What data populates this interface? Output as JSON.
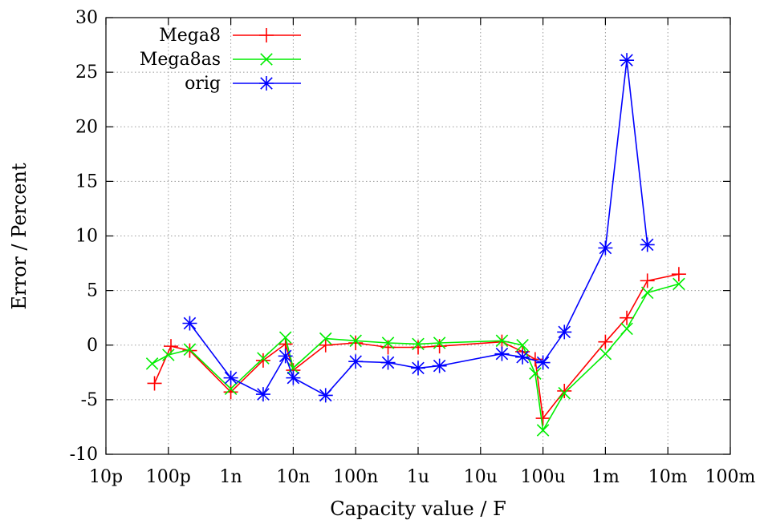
{
  "chart_data": {
    "type": "line",
    "xlabel": "Capacity value / F",
    "ylabel": "Error / Percent",
    "xscale": "log",
    "xlim": [
      1e-11,
      0.1
    ],
    "ylim": [
      -10,
      30
    ],
    "grid": true,
    "legend_position": "top-left",
    "x_ticks": [
      {
        "value": 1e-11,
        "label": "10p"
      },
      {
        "value": 1e-10,
        "label": "100p"
      },
      {
        "value": 1e-09,
        "label": "1n"
      },
      {
        "value": 1e-08,
        "label": "10n"
      },
      {
        "value": 1e-07,
        "label": "100n"
      },
      {
        "value": 1e-06,
        "label": "1u"
      },
      {
        "value": 1e-05,
        "label": "10u"
      },
      {
        "value": 0.0001,
        "label": "100u"
      },
      {
        "value": 0.001,
        "label": "1m"
      },
      {
        "value": 0.01,
        "label": "10m"
      },
      {
        "value": 0.1,
        "label": "100m"
      }
    ],
    "y_ticks": [
      -10,
      -5,
      0,
      5,
      10,
      15,
      20,
      25,
      30
    ],
    "series": [
      {
        "name": "Mega8",
        "color": "#ff0000",
        "marker": "plus",
        "points": [
          [
            6e-11,
            -3.5
          ],
          [
            1.1e-10,
            -0.1
          ],
          [
            2.2e-10,
            -0.5
          ],
          [
            1e-09,
            -4.3
          ],
          [
            3.3e-09,
            -1.4
          ],
          [
            7.5e-09,
            0.1
          ],
          [
            1e-08,
            -2.3
          ],
          [
            3.3e-08,
            0.0
          ],
          [
            1e-07,
            0.2
          ],
          [
            3.3e-07,
            -0.2
          ],
          [
            1e-06,
            -0.2
          ],
          [
            2.2e-06,
            -0.1
          ],
          [
            2.2e-05,
            0.3
          ],
          [
            4.7e-05,
            -0.6
          ],
          [
            7.5e-05,
            -1.3
          ],
          [
            0.0001,
            -6.7
          ],
          [
            0.00022,
            -4.2
          ],
          [
            0.001,
            0.3
          ],
          [
            0.0022,
            2.5
          ],
          [
            0.0047,
            5.9
          ],
          [
            0.015,
            6.5
          ]
        ]
      },
      {
        "name": "Mega8as",
        "color": "#00ee00",
        "marker": "cross",
        "points": [
          [
            5.5e-11,
            -1.7
          ],
          [
            1e-10,
            -0.9
          ],
          [
            2.2e-10,
            -0.4
          ],
          [
            1e-09,
            -4.0
          ],
          [
            3.3e-09,
            -1.2
          ],
          [
            7.5e-09,
            0.7
          ],
          [
            1e-08,
            -2.1
          ],
          [
            3.3e-08,
            0.6
          ],
          [
            1e-07,
            0.4
          ],
          [
            3.3e-07,
            0.2
          ],
          [
            1e-06,
            0.1
          ],
          [
            2.2e-06,
            0.2
          ],
          [
            2.2e-05,
            0.4
          ],
          [
            4.7e-05,
            0.0
          ],
          [
            7.5e-05,
            -2.6
          ],
          [
            0.0001,
            -7.8
          ],
          [
            0.00022,
            -4.4
          ],
          [
            0.001,
            -0.8
          ],
          [
            0.0022,
            1.5
          ],
          [
            0.0047,
            4.8
          ],
          [
            0.015,
            5.6
          ]
        ]
      },
      {
        "name": "orig",
        "color": "#0000ff",
        "marker": "star",
        "points": [
          [
            2.2e-10,
            2.0
          ],
          [
            1e-09,
            -3.0
          ],
          [
            3.3e-09,
            -4.5
          ],
          [
            7.5e-09,
            -1.0
          ],
          [
            1e-08,
            -3.0
          ],
          [
            3.3e-08,
            -4.6
          ],
          [
            1e-07,
            -1.5
          ],
          [
            3.3e-07,
            -1.6
          ],
          [
            1e-06,
            -2.1
          ],
          [
            2.2e-06,
            -1.9
          ],
          [
            2.2e-05,
            -0.8
          ],
          [
            4.7e-05,
            -1.1
          ],
          [
            0.0001,
            -1.6
          ],
          [
            0.00022,
            1.2
          ],
          [
            0.001,
            8.9
          ],
          [
            0.0022,
            26.1
          ],
          [
            0.0047,
            9.2
          ]
        ]
      }
    ]
  }
}
